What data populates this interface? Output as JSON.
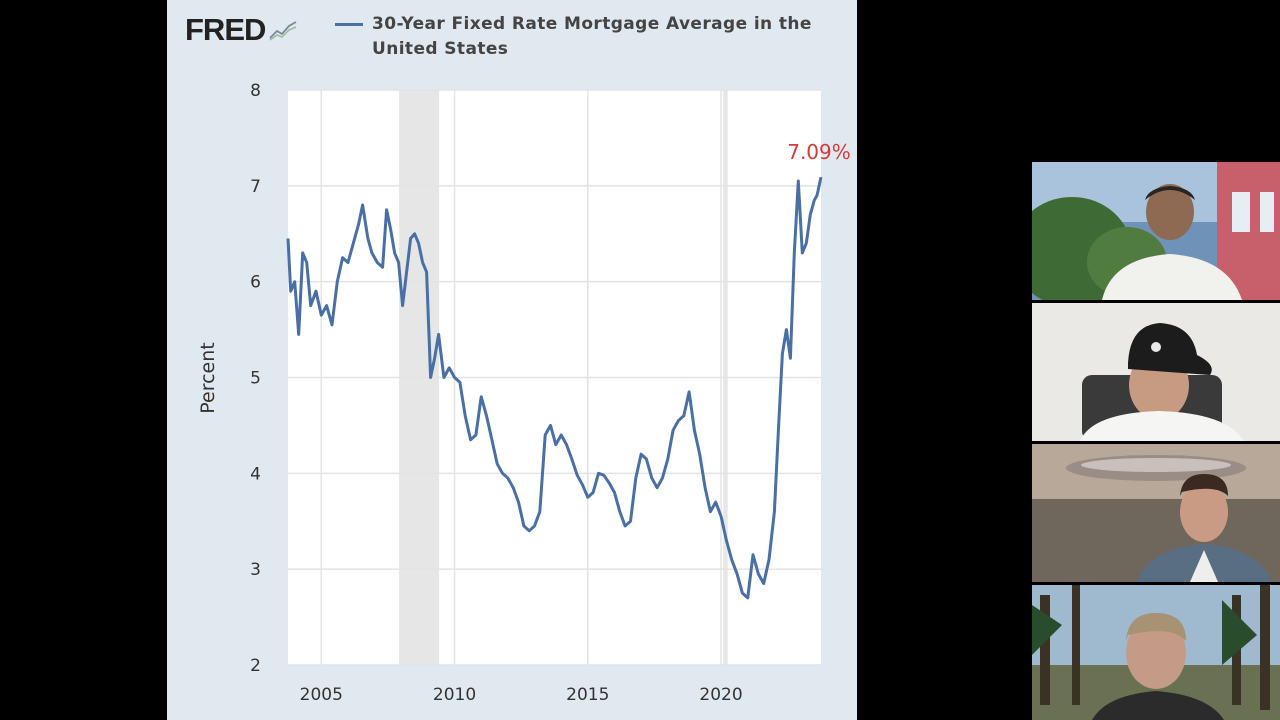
{
  "brand": {
    "logo_text": "FRED",
    "logo_mark_icon": "trend-chart-icon"
  },
  "chart_data": {
    "type": "line",
    "title": "30-Year Fixed Rate Mortgage Average in the United States",
    "ylabel": "Percent",
    "xlabel": "",
    "xlim": [
      2003.75,
      2023.75
    ],
    "ylim": [
      2,
      8
    ],
    "x_ticks": [
      2005,
      2010,
      2015,
      2020
    ],
    "y_ticks": [
      2,
      3,
      4,
      5,
      6,
      7,
      8
    ],
    "grid": true,
    "recession_shading": [
      [
        2007.92,
        2009.42
      ],
      [
        2020.08,
        2020.25
      ]
    ],
    "series": [
      {
        "name": "30-Year Fixed Rate Mortgage Average in the United States",
        "color": "#4a6fa5",
        "x": [
          2003.75,
          2003.85,
          2004.0,
          2004.15,
          2004.3,
          2004.45,
          2004.6,
          2004.8,
          2005.0,
          2005.2,
          2005.4,
          2005.6,
          2005.8,
          2006.0,
          2006.2,
          2006.4,
          2006.55,
          2006.75,
          2006.9,
          2007.1,
          2007.3,
          2007.45,
          2007.6,
          2007.75,
          2007.9,
          2008.05,
          2008.2,
          2008.35,
          2008.5,
          2008.65,
          2008.8,
          2008.95,
          2009.1,
          2009.25,
          2009.4,
          2009.6,
          2009.8,
          2010.0,
          2010.2,
          2010.4,
          2010.6,
          2010.8,
          2011.0,
          2011.2,
          2011.4,
          2011.6,
          2011.8,
          2012.0,
          2012.2,
          2012.4,
          2012.6,
          2012.8,
          2013.0,
          2013.2,
          2013.4,
          2013.6,
          2013.8,
          2014.0,
          2014.2,
          2014.4,
          2014.6,
          2014.8,
          2015.0,
          2015.2,
          2015.4,
          2015.6,
          2015.8,
          2016.0,
          2016.2,
          2016.4,
          2016.6,
          2016.8,
          2017.0,
          2017.2,
          2017.4,
          2017.6,
          2017.8,
          2018.0,
          2018.2,
          2018.4,
          2018.6,
          2018.8,
          2019.0,
          2019.2,
          2019.4,
          2019.6,
          2019.8,
          2020.0,
          2020.2,
          2020.4,
          2020.6,
          2020.8,
          2021.0,
          2021.2,
          2021.4,
          2021.6,
          2021.8,
          2022.0,
          2022.15,
          2022.3,
          2022.45,
          2022.6,
          2022.75,
          2022.9,
          2023.05,
          2023.2,
          2023.35,
          2023.5,
          2023.6,
          2023.75
        ],
        "values": [
          6.45,
          5.9,
          6.0,
          5.45,
          6.3,
          6.2,
          5.75,
          5.9,
          5.65,
          5.75,
          5.55,
          6.0,
          6.25,
          6.2,
          6.4,
          6.6,
          6.8,
          6.45,
          6.3,
          6.2,
          6.15,
          6.75,
          6.55,
          6.3,
          6.2,
          5.75,
          6.1,
          6.45,
          6.5,
          6.4,
          6.2,
          6.1,
          5.0,
          5.2,
          5.45,
          5.0,
          5.1,
          5.0,
          4.95,
          4.6,
          4.35,
          4.4,
          4.8,
          4.6,
          4.35,
          4.1,
          4.0,
          3.95,
          3.85,
          3.7,
          3.45,
          3.4,
          3.45,
          3.6,
          4.4,
          4.5,
          4.3,
          4.4,
          4.3,
          4.15,
          3.98,
          3.88,
          3.75,
          3.8,
          4.0,
          3.98,
          3.9,
          3.8,
          3.6,
          3.45,
          3.5,
          3.95,
          4.2,
          4.15,
          3.95,
          3.85,
          3.95,
          4.15,
          4.45,
          4.55,
          4.6,
          4.85,
          4.45,
          4.2,
          3.85,
          3.6,
          3.7,
          3.55,
          3.3,
          3.1,
          2.95,
          2.75,
          2.7,
          3.15,
          2.95,
          2.85,
          3.1,
          3.6,
          4.45,
          5.25,
          5.5,
          5.2,
          6.3,
          7.05,
          6.3,
          6.4,
          6.7,
          6.85,
          6.9,
          7.09
        ]
      }
    ],
    "annotations": [
      {
        "text": "7.09%",
        "x": 2023.75,
        "y": 7.09,
        "color": "#d33b3b"
      }
    ]
  },
  "video_tiles": [
    {
      "name": "participant-1-video",
      "icon": "person-icon"
    },
    {
      "name": "participant-2-video",
      "icon": "person-icon"
    },
    {
      "name": "participant-3-video",
      "icon": "person-icon"
    },
    {
      "name": "participant-4-video",
      "icon": "person-icon"
    }
  ]
}
